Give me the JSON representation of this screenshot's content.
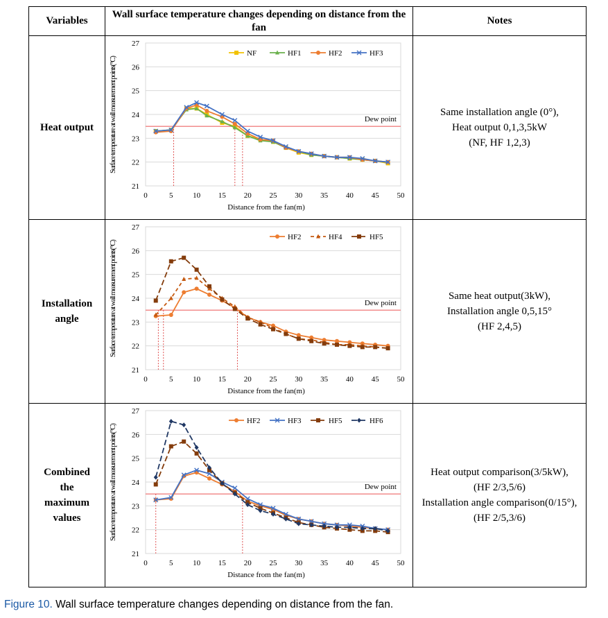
{
  "table": {
    "headers": {
      "variables": "Variables",
      "chart": "Wall surface temperature changes depending on distance from the fan",
      "notes": "Notes"
    },
    "rows": [
      {
        "variable": "Heat output",
        "notes": [
          "Same installation angle (0°),",
          "Heat output 0,1,3,5kW",
          "(NF, HF 1,2,3)"
        ]
      },
      {
        "variable": "Installation angle",
        "notes": [
          "Same heat output(3kW),",
          "Installation angle 0,5,15°",
          "(HF 2,4,5)"
        ]
      },
      {
        "variable": "Combined the maximum values",
        "notes": [
          "Heat output comparison(3/5kW),",
          "(HF 2/3,5/6)",
          "Installation angle comparison(0/15°),",
          "(HF 2/5,3/6)"
        ]
      }
    ]
  },
  "caption": {
    "label": "Figure 10.",
    "text": " Wall surface temperature changes depending on distance from the fan."
  },
  "chart_data": [
    {
      "type": "line",
      "xlabel": "Distance from the fan(m)",
      "ylabel": "Surface temperature at wall measurement points(°C)",
      "xlim": [
        0,
        50
      ],
      "ylim": [
        21,
        27
      ],
      "xticks": [
        0,
        5,
        10,
        15,
        20,
        25,
        30,
        35,
        40,
        45,
        50
      ],
      "yticks": [
        21,
        22,
        23,
        24,
        25,
        26,
        27
      ],
      "grid": "horizontal",
      "legend": "top-right",
      "annotation": {
        "text": "Dew point",
        "y": 23.5
      },
      "dew_drops": [
        5.5,
        17.5,
        19
      ],
      "x": [
        2,
        5,
        8,
        10,
        12,
        15,
        17.5,
        20,
        22.5,
        25,
        27.5,
        30,
        32.5,
        35,
        37.5,
        40,
        42.5,
        45,
        47.5
      ],
      "series": [
        {
          "name": "NF",
          "color": "#f2c200",
          "marker": "square",
          "values": [
            23.3,
            23.35,
            24.25,
            24.25,
            24.0,
            23.65,
            23.5,
            23.1,
            22.95,
            22.85,
            22.6,
            22.4,
            22.3,
            22.25,
            22.2,
            22.15,
            22.1,
            22.05,
            21.95
          ]
        },
        {
          "name": "HF1",
          "color": "#6ab04c",
          "marker": "triangle",
          "values": [
            23.3,
            23.35,
            24.2,
            24.25,
            23.95,
            23.7,
            23.45,
            23.1,
            22.9,
            22.85,
            22.6,
            22.45,
            22.3,
            22.25,
            22.2,
            22.15,
            22.1,
            22.05,
            22.0
          ]
        },
        {
          "name": "HF2",
          "color": "#ed7d31",
          "marker": "circle",
          "values": [
            23.25,
            23.3,
            24.25,
            24.4,
            24.15,
            23.9,
            23.6,
            23.2,
            22.95,
            22.9,
            22.6,
            22.45,
            22.35,
            22.25,
            22.2,
            22.2,
            22.1,
            22.05,
            22.0
          ]
        },
        {
          "name": "HF3",
          "color": "#4472c4",
          "marker": "x",
          "values": [
            23.3,
            23.35,
            24.3,
            24.5,
            24.35,
            24.0,
            23.75,
            23.3,
            23.05,
            22.9,
            22.65,
            22.45,
            22.35,
            22.25,
            22.2,
            22.2,
            22.15,
            22.05,
            22.0
          ]
        }
      ]
    },
    {
      "type": "line",
      "xlabel": "Distance from the fan(m)",
      "ylabel": "Surface temperature at wall measurement points(°C)",
      "xlim": [
        0,
        50
      ],
      "ylim": [
        21,
        27
      ],
      "xticks": [
        0,
        5,
        10,
        15,
        20,
        25,
        30,
        35,
        40,
        45,
        50
      ],
      "yticks": [
        21,
        22,
        23,
        24,
        25,
        26,
        27
      ],
      "grid": "horizontal",
      "legend": "top-right",
      "annotation": {
        "text": "Dew point",
        "y": 23.5
      },
      "dew_drops": [
        2.5,
        3.5,
        18
      ],
      "x": [
        2,
        5,
        7.5,
        10,
        12.5,
        15,
        17.5,
        20,
        22.5,
        25,
        27.5,
        30,
        32.5,
        35,
        37.5,
        40,
        42.5,
        45,
        47.5
      ],
      "series": [
        {
          "name": "HF2",
          "color": "#ed7d31",
          "marker": "circle",
          "dash": "",
          "values": [
            23.25,
            23.3,
            24.25,
            24.4,
            24.15,
            23.9,
            23.6,
            23.2,
            23.0,
            22.85,
            22.6,
            22.45,
            22.35,
            22.25,
            22.2,
            22.15,
            22.1,
            22.05,
            22.0
          ]
        },
        {
          "name": "HF4",
          "color": "#c55a11",
          "marker": "triangle",
          "dash": "5,4",
          "values": [
            23.3,
            24.0,
            24.8,
            24.85,
            24.4,
            24.0,
            23.65,
            23.2,
            23.0,
            22.75,
            22.5,
            22.3,
            22.25,
            22.15,
            22.05,
            22.05,
            22.0,
            21.95,
            21.9
          ]
        },
        {
          "name": "HF5",
          "color": "#843c0c",
          "marker": "square",
          "dash": "8,4",
          "values": [
            23.9,
            25.55,
            25.7,
            25.2,
            24.5,
            23.95,
            23.55,
            23.15,
            22.9,
            22.7,
            22.5,
            22.3,
            22.2,
            22.1,
            22.05,
            22.0,
            21.95,
            21.95,
            21.9
          ]
        }
      ]
    },
    {
      "type": "line",
      "xlabel": "Distance from the fan(m)",
      "ylabel": "Surface temperature at wall measurement points(°C)",
      "xlim": [
        0,
        50
      ],
      "ylim": [
        21,
        27
      ],
      "xticks": [
        0,
        5,
        10,
        15,
        20,
        25,
        30,
        35,
        40,
        45,
        50
      ],
      "yticks": [
        21,
        22,
        23,
        24,
        25,
        26,
        27
      ],
      "grid": "horizontal",
      "legend": "top-right",
      "annotation": {
        "text": "Dew point",
        "y": 23.5
      },
      "dew_drops": [
        2,
        19
      ],
      "x": [
        2,
        5,
        7.5,
        10,
        12.5,
        15,
        17.5,
        20,
        22.5,
        25,
        27.5,
        30,
        32.5,
        35,
        37.5,
        40,
        42.5,
        45,
        47.5
      ],
      "series": [
        {
          "name": "HF2",
          "color": "#ed7d31",
          "marker": "circle",
          "dash": "",
          "values": [
            23.25,
            23.3,
            24.25,
            24.4,
            24.15,
            23.9,
            23.6,
            23.2,
            23.0,
            22.85,
            22.6,
            22.45,
            22.35,
            22.25,
            22.2,
            22.15,
            22.1,
            22.05,
            22.0
          ]
        },
        {
          "name": "HF3",
          "color": "#4472c4",
          "marker": "x",
          "dash": "",
          "values": [
            23.25,
            23.35,
            24.3,
            24.5,
            24.35,
            24.0,
            23.75,
            23.3,
            23.05,
            22.9,
            22.65,
            22.45,
            22.35,
            22.25,
            22.2,
            22.2,
            22.15,
            22.05,
            22.0
          ]
        },
        {
          "name": "HF5",
          "color": "#843c0c",
          "marker": "square",
          "dash": "8,4",
          "values": [
            23.9,
            25.5,
            25.7,
            25.2,
            24.5,
            23.95,
            23.55,
            23.15,
            22.9,
            22.7,
            22.5,
            22.3,
            22.2,
            22.1,
            22.05,
            22.0,
            21.95,
            21.95,
            21.9
          ]
        },
        {
          "name": "HF6",
          "color": "#203864",
          "marker": "diamond",
          "dash": "8,4",
          "values": [
            24.2,
            26.55,
            26.4,
            25.45,
            24.6,
            23.95,
            23.5,
            23.05,
            22.8,
            22.65,
            22.45,
            22.25,
            22.2,
            22.15,
            22.1,
            22.1,
            22.05,
            22.05,
            21.95
          ]
        }
      ]
    }
  ]
}
